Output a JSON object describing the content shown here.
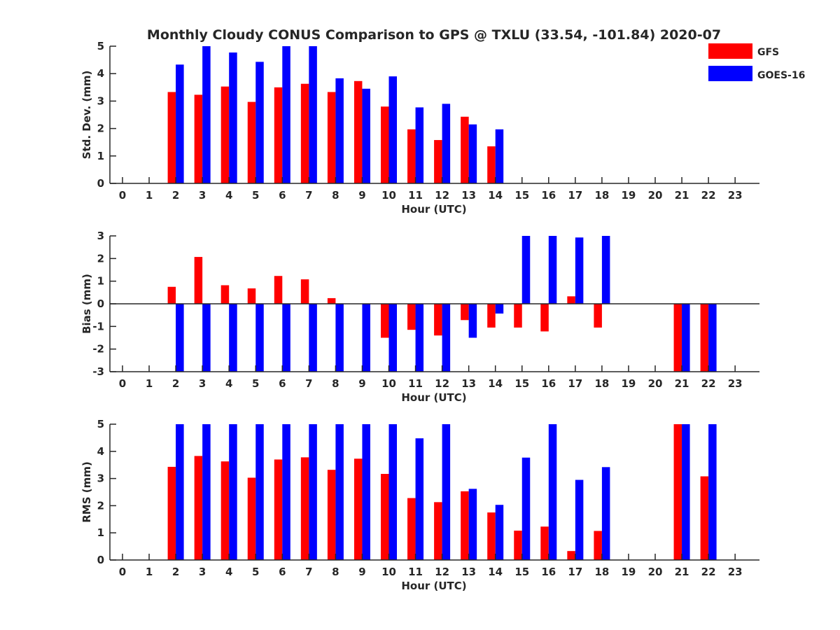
{
  "title": "Monthly Cloudy CONUS Comparison to GPS @ TXLU (33.54, -101.84) 2020-07",
  "legend": {
    "placement": "top-right",
    "entries": [
      {
        "name": "GFS",
        "color": "#ff0000"
      },
      {
        "name": "GOES-16",
        "color": "#0000ff"
      }
    ]
  },
  "chart_data": [
    {
      "type": "bar",
      "xlabel": "Hour (UTC)",
      "ylabel": "Std. Dev. (mm)",
      "categories": [
        "0",
        "1",
        "2",
        "3",
        "4",
        "5",
        "6",
        "7",
        "8",
        "9",
        "10",
        "11",
        "12",
        "13",
        "14",
        "15",
        "16",
        "17",
        "18",
        "19",
        "20",
        "21",
        "22",
        "23"
      ],
      "ylim": [
        0,
        5
      ],
      "yticks": [
        "0",
        "1",
        "2",
        "3",
        "4",
        "5"
      ],
      "grid": false,
      "series": [
        {
          "name": "GFS",
          "color": "#ff0000",
          "values": [
            null,
            null,
            3.33,
            3.23,
            3.53,
            2.97,
            3.5,
            3.63,
            3.33,
            3.73,
            2.8,
            1.97,
            1.58,
            2.43,
            1.35,
            null,
            null,
            null,
            null,
            null,
            null,
            null,
            null,
            null
          ]
        },
        {
          "name": "GOES-16",
          "color": "#0000ff",
          "values": [
            null,
            null,
            4.33,
            5.0,
            4.77,
            4.43,
            5.0,
            5.0,
            3.83,
            3.45,
            3.9,
            2.77,
            2.9,
            2.15,
            1.97,
            null,
            null,
            null,
            null,
            null,
            null,
            null,
            null,
            null
          ]
        }
      ]
    },
    {
      "type": "bar",
      "xlabel": "Hour (UTC)",
      "ylabel": "Bias (mm)",
      "categories": [
        "0",
        "1",
        "2",
        "3",
        "4",
        "5",
        "6",
        "7",
        "8",
        "9",
        "10",
        "11",
        "12",
        "13",
        "14",
        "15",
        "16",
        "17",
        "18",
        "19",
        "20",
        "21",
        "22",
        "23"
      ],
      "ylim": [
        -3,
        3
      ],
      "yticks": [
        "-3",
        "-2",
        "-1",
        "0",
        "1",
        "2",
        "3"
      ],
      "grid": false,
      "zero_line": true,
      "series": [
        {
          "name": "GFS",
          "color": "#ff0000",
          "values": [
            null,
            null,
            0.75,
            2.07,
            0.82,
            0.68,
            1.23,
            1.08,
            0.25,
            null,
            -1.5,
            -1.15,
            -1.4,
            -0.72,
            -1.05,
            -1.05,
            -1.22,
            0.33,
            -1.05,
            null,
            null,
            -3.0,
            -3.0,
            null
          ]
        },
        {
          "name": "GOES-16",
          "color": "#0000ff",
          "values": [
            null,
            null,
            -3.0,
            -3.0,
            -3.0,
            -3.0,
            -3.0,
            -3.0,
            -3.0,
            -3.0,
            -3.0,
            -3.0,
            -3.0,
            -1.5,
            -0.43,
            3.0,
            3.0,
            2.93,
            3.0,
            null,
            null,
            -3.0,
            -3.0,
            null
          ]
        }
      ]
    },
    {
      "type": "bar",
      "xlabel": "Hour (UTC)",
      "ylabel": "RMS (mm)",
      "categories": [
        "0",
        "1",
        "2",
        "3",
        "4",
        "5",
        "6",
        "7",
        "8",
        "9",
        "10",
        "11",
        "12",
        "13",
        "14",
        "15",
        "16",
        "17",
        "18",
        "19",
        "20",
        "21",
        "22",
        "23"
      ],
      "ylim": [
        0,
        5
      ],
      "yticks": [
        "0",
        "1",
        "2",
        "3",
        "4",
        "5"
      ],
      "grid": false,
      "series": [
        {
          "name": "GFS",
          "color": "#ff0000",
          "values": [
            null,
            null,
            3.43,
            3.83,
            3.63,
            3.03,
            3.7,
            3.78,
            3.32,
            3.73,
            3.17,
            2.28,
            2.13,
            2.53,
            1.75,
            1.08,
            1.23,
            0.33,
            1.07,
            null,
            null,
            5.0,
            3.08,
            null
          ]
        },
        {
          "name": "GOES-16",
          "color": "#0000ff",
          "values": [
            null,
            null,
            5.0,
            5.0,
            5.0,
            5.0,
            5.0,
            5.0,
            5.0,
            5.0,
            5.0,
            4.48,
            5.0,
            2.62,
            2.03,
            3.77,
            5.0,
            2.95,
            3.42,
            null,
            null,
            5.0,
            5.0,
            null
          ]
        }
      ]
    }
  ]
}
